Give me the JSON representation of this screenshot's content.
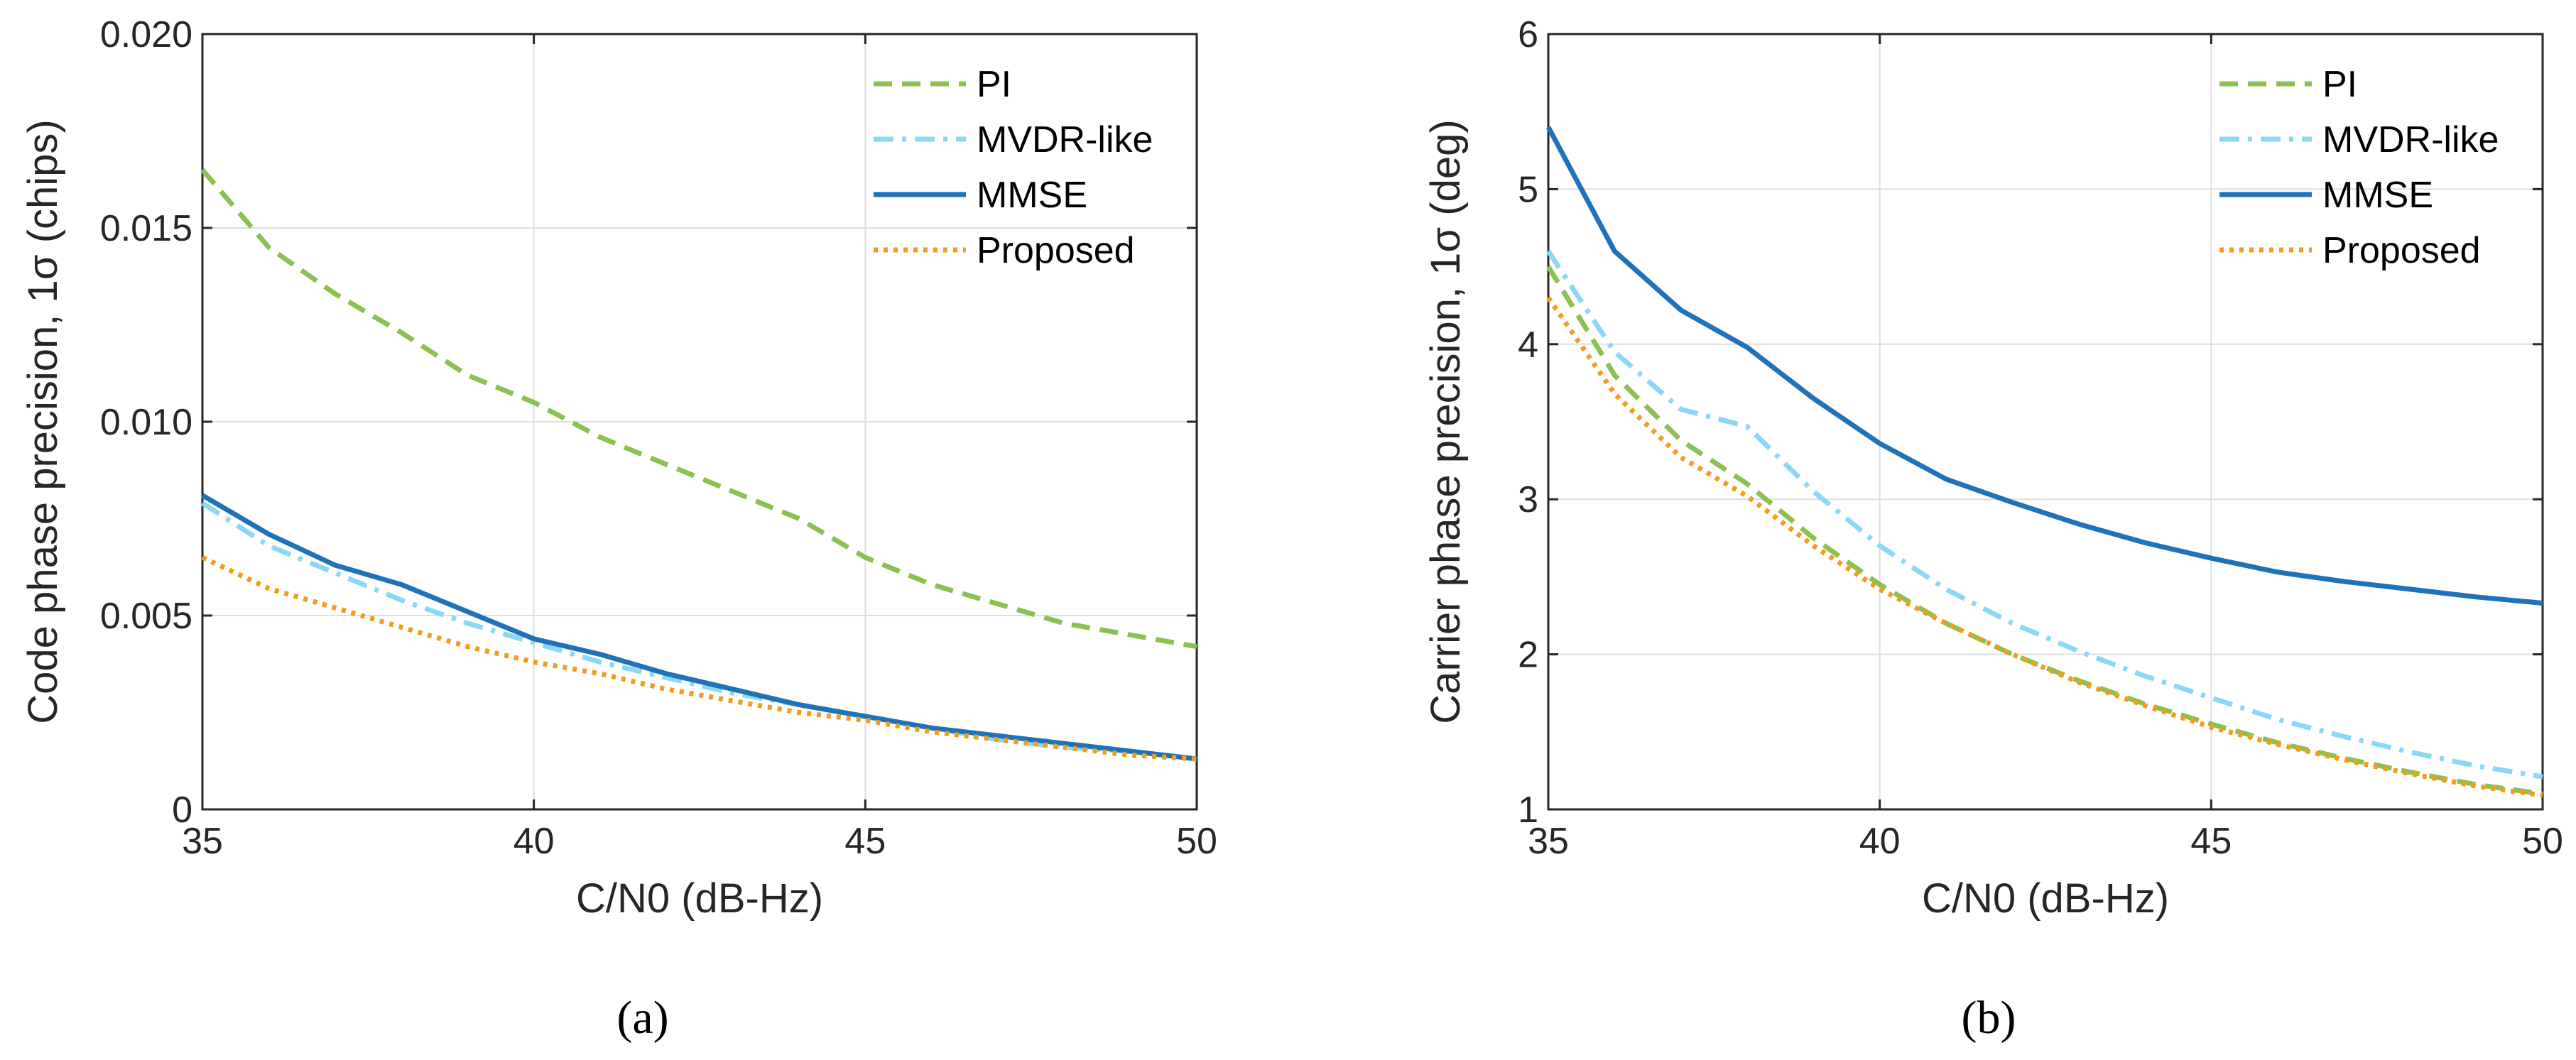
{
  "chart_data": [
    {
      "type": "line",
      "panel_label": "(a)",
      "xlabel": "C/N0 (dB-Hz)",
      "ylabel": "Code phase precision, 1σ (chips)",
      "xlim": [
        35,
        50
      ],
      "ylim": [
        0,
        0.02
      ],
      "xticks": [
        35,
        40,
        45,
        50
      ],
      "xtick_labels": [
        "35",
        "40",
        "45",
        "50"
      ],
      "yticks": [
        0,
        0.005,
        0.01,
        0.015,
        0.02
      ],
      "ytick_labels": [
        "0",
        "0.005",
        "0.010",
        "0.015",
        "0.020"
      ],
      "grid": true,
      "legend_position": "top-right",
      "x": [
        35,
        36,
        37,
        38,
        39,
        40,
        41,
        42,
        43,
        44,
        45,
        46,
        47,
        48,
        49,
        50
      ],
      "series": [
        {
          "name": "PI",
          "color": "#8cc152",
          "dash": "dashed",
          "values": [
            0.0165,
            0.0145,
            0.0133,
            0.0123,
            0.0112,
            0.0105,
            0.0096,
            0.0089,
            0.0082,
            0.0075,
            0.0065,
            0.0058,
            0.0053,
            0.0048,
            0.0045,
            0.0042
          ]
        },
        {
          "name": "MVDR-like",
          "color": "#8ad8f5",
          "dash": "dashdot",
          "values": [
            0.0079,
            0.0068,
            0.0061,
            0.0054,
            0.0048,
            0.0043,
            0.0038,
            0.0034,
            0.003,
            0.0027,
            0.0024,
            0.0021,
            0.0018,
            0.0016,
            0.0015,
            0.0013
          ]
        },
        {
          "name": "MMSE",
          "color": "#1f72b8",
          "dash": "solid",
          "values": [
            0.0081,
            0.0071,
            0.0063,
            0.0058,
            0.0051,
            0.0044,
            0.004,
            0.0035,
            0.0031,
            0.0027,
            0.0024,
            0.0021,
            0.0019,
            0.0017,
            0.0015,
            0.0013
          ]
        },
        {
          "name": "Proposed",
          "color": "#f39c1e",
          "dash": "dotted",
          "values": [
            0.0065,
            0.0057,
            0.0052,
            0.0047,
            0.0042,
            0.0038,
            0.0035,
            0.0031,
            0.0028,
            0.0025,
            0.0023,
            0.002,
            0.0018,
            0.0016,
            0.0014,
            0.0013
          ]
        }
      ]
    },
    {
      "type": "line",
      "panel_label": "(b)",
      "xlabel": "C/N0 (dB-Hz)",
      "ylabel": "Carrier phase precision, 1σ (deg)",
      "xlim": [
        35,
        50
      ],
      "ylim": [
        1,
        6
      ],
      "xticks": [
        35,
        40,
        45,
        50
      ],
      "xtick_labels": [
        "35",
        "40",
        "45",
        "50"
      ],
      "yticks": [
        1,
        2,
        3,
        4,
        5,
        6
      ],
      "ytick_labels": [
        "1",
        "2",
        "3",
        "4",
        "5",
        "6"
      ],
      "grid": true,
      "legend_position": "top-right",
      "x": [
        35,
        36,
        37,
        38,
        39,
        40,
        41,
        42,
        43,
        44,
        45,
        46,
        47,
        48,
        49,
        50
      ],
      "series": [
        {
          "name": "PI",
          "color": "#8cc152",
          "dash": "dashed",
          "values": [
            4.5,
            3.8,
            3.38,
            3.1,
            2.75,
            2.45,
            2.2,
            2.0,
            1.83,
            1.68,
            1.55,
            1.43,
            1.33,
            1.24,
            1.16,
            1.1
          ]
        },
        {
          "name": "MVDR-like",
          "color": "#8ad8f5",
          "dash": "dashdot",
          "values": [
            4.6,
            3.95,
            3.58,
            3.47,
            3.05,
            2.7,
            2.42,
            2.2,
            2.02,
            1.86,
            1.72,
            1.58,
            1.47,
            1.37,
            1.28,
            1.21
          ]
        },
        {
          "name": "MMSE",
          "color": "#1f72b8",
          "dash": "solid",
          "values": [
            5.4,
            4.6,
            4.22,
            3.98,
            3.65,
            3.36,
            3.13,
            2.98,
            2.84,
            2.72,
            2.62,
            2.53,
            2.47,
            2.42,
            2.37,
            2.33
          ]
        },
        {
          "name": "Proposed",
          "color": "#f39c1e",
          "dash": "dotted",
          "values": [
            4.3,
            3.68,
            3.27,
            3.02,
            2.7,
            2.42,
            2.2,
            2.0,
            1.82,
            1.67,
            1.53,
            1.42,
            1.32,
            1.23,
            1.15,
            1.09
          ]
        }
      ]
    }
  ]
}
